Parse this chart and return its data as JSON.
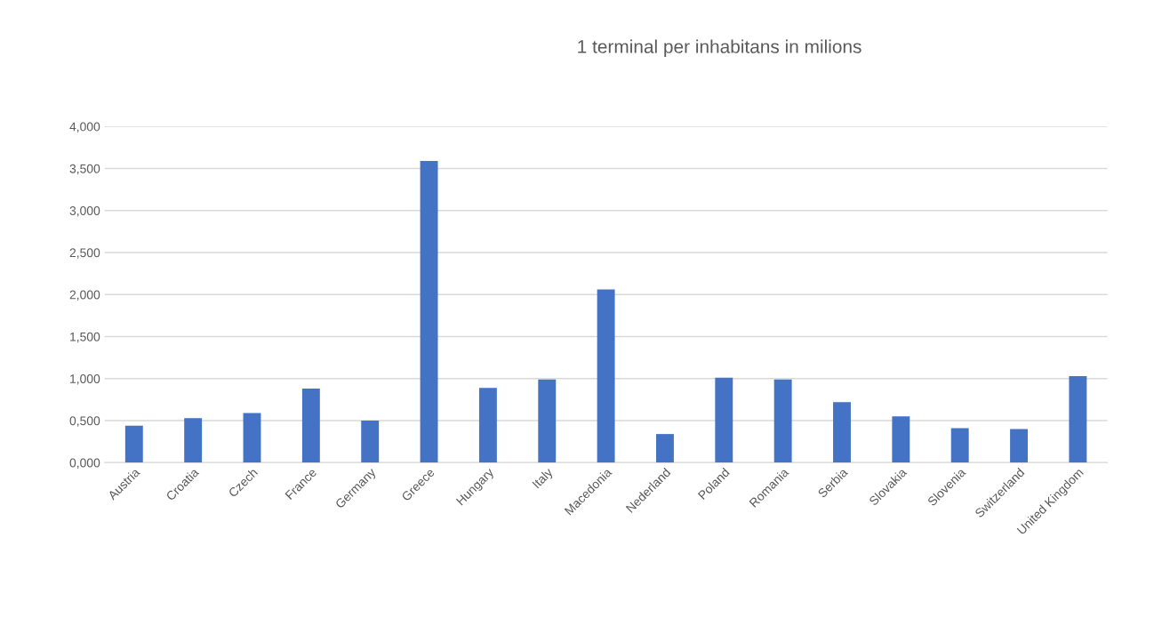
{
  "chart_data": {
    "type": "bar",
    "title": "1 terminal per inhabitans in milions",
    "categories": [
      "Austria",
      "Croatia",
      "Czech",
      "France",
      "Germany",
      "Greece",
      "Hungary",
      "Italy",
      "Macedonia",
      "Nederland",
      "Poland",
      "Romania",
      "Serbia",
      "Slovakia",
      "Slovenia",
      "Switzerland",
      "United Kingdom"
    ],
    "values": [
      0.44,
      0.53,
      0.59,
      0.88,
      0.5,
      3.59,
      0.89,
      0.99,
      2.06,
      0.34,
      1.01,
      0.99,
      0.72,
      0.55,
      0.41,
      0.4,
      1.03
    ],
    "color": "#4472c4",
    "ylim": [
      0,
      4
    ],
    "yticks": [
      {
        "value": 0,
        "label": "0,000"
      },
      {
        "value": 0.5,
        "label": "0,500"
      },
      {
        "value": 1,
        "label": "1,000"
      },
      {
        "value": 1.5,
        "label": "1,500"
      },
      {
        "value": 2,
        "label": "2,000"
      },
      {
        "value": 2.5,
        "label": "2,500"
      },
      {
        "value": 3,
        "label": "3,000"
      },
      {
        "value": 3.5,
        "label": "3,500"
      },
      {
        "value": 4,
        "label": "4,000"
      }
    ],
    "grid": "y"
  }
}
